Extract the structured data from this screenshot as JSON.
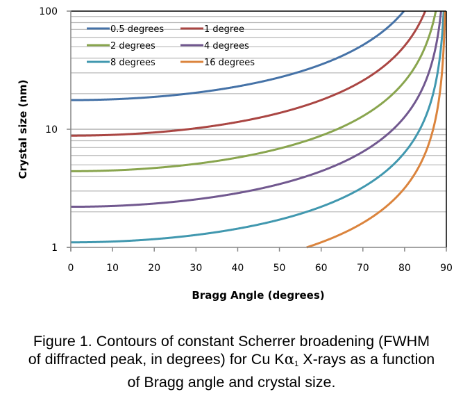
{
  "chart_data": {
    "type": "line",
    "title": "",
    "xlabel": "Bragg Angle (degrees)",
    "ylabel": "Crystal size (nm)",
    "xlim": [
      0,
      90
    ],
    "ylim": [
      1,
      100
    ],
    "yscale": "log",
    "x_ticks": [
      "0",
      "10",
      "20",
      "30",
      "40",
      "50",
      "60",
      "70",
      "80",
      "90"
    ],
    "y_ticks": [
      "1",
      "10",
      "100"
    ],
    "grid": "horizontal minor log gridlines",
    "legend_position": "top-left",
    "model": "crystal_size = 0.15406 / (FWHM_rad * cos(theta))",
    "x": [
      0,
      10,
      20,
      30,
      40,
      50,
      55,
      60,
      65,
      70,
      75,
      80,
      82,
      84,
      86,
      88,
      89
    ],
    "series": [
      {
        "name": "0.5 degrees",
        "color": "#4572A7",
        "fwhm_deg": 0.5,
        "values": [
          17.65,
          17.92,
          18.78,
          20.38,
          23.04,
          27.46,
          30.77,
          35.3,
          41.77,
          51.61,
          68.2,
          101.6,
          null,
          null,
          null,
          null,
          null
        ]
      },
      {
        "name": "1 degree",
        "color": "#AA4643",
        "fwhm_deg": 1,
        "values": [
          8.83,
          8.96,
          9.39,
          10.19,
          11.52,
          13.73,
          15.39,
          17.65,
          20.88,
          25.81,
          34.1,
          50.8,
          63.4,
          84.4,
          null,
          null,
          null
        ]
      },
      {
        "name": "2 degrees",
        "color": "#89A54E",
        "fwhm_deg": 2,
        "values": [
          4.41,
          4.48,
          4.7,
          5.1,
          5.76,
          6.87,
          7.69,
          8.83,
          10.44,
          12.9,
          17.05,
          25.41,
          31.7,
          42.2,
          63.3,
          null,
          null
        ]
      },
      {
        "name": "4 degrees",
        "color": "#71588F",
        "fwhm_deg": 4,
        "values": [
          2.21,
          2.24,
          2.35,
          2.55,
          2.88,
          3.43,
          3.85,
          4.41,
          5.22,
          6.45,
          8.53,
          12.71,
          15.85,
          21.1,
          31.6,
          63.2,
          null
        ]
      },
      {
        "name": "8 degrees",
        "color": "#4198AF",
        "fwhm_deg": 8,
        "values": [
          1.1,
          1.12,
          1.17,
          1.27,
          1.44,
          1.72,
          1.92,
          2.21,
          2.61,
          3.23,
          4.26,
          6.35,
          7.93,
          10.55,
          15.8,
          31.6,
          63.2
        ]
      },
      {
        "name": "16 degrees",
        "color": "#DB843D",
        "fwhm_deg": 16,
        "values": [
          null,
          null,
          null,
          null,
          null,
          null,
          null,
          1.1,
          1.31,
          1.61,
          2.13,
          3.18,
          3.96,
          5.28,
          7.91,
          15.8,
          31.6
        ]
      }
    ]
  },
  "caption": {
    "line1": "Figure 1.  Contours of constant Scherrer broadening (FWHM",
    "line2_pre": "of diffracted peak, in degrees) for Cu K",
    "line2_alpha": "α",
    "line2_sub": "1",
    "line2_post": " X-rays as a function",
    "line3": "of Bragg angle and crystal size."
  }
}
